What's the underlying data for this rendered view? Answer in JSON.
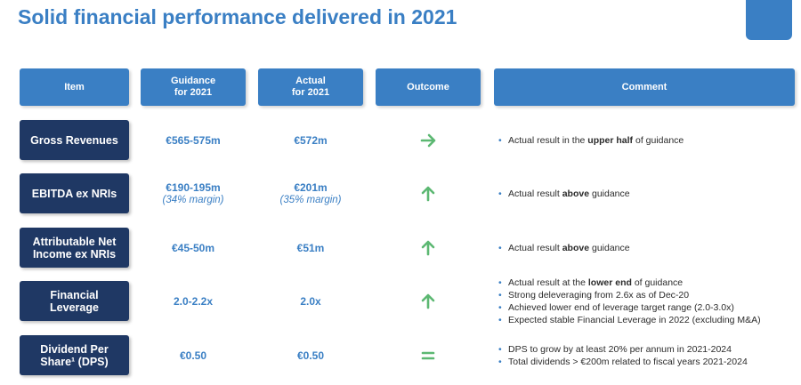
{
  "title": "Solid financial performance delivered in 2021",
  "colors": {
    "accent": "#3a7fc4",
    "navy": "#1f3864",
    "green": "#5cb872"
  },
  "headers": [
    {
      "line1": "Item",
      "line2": ""
    },
    {
      "line1": "Guidance",
      "line2": "for 2021"
    },
    {
      "line1": "Actual",
      "line2": "for 2021"
    },
    {
      "line1": "Outcome",
      "line2": ""
    },
    {
      "line1": "Comment",
      "line2": ""
    }
  ],
  "rows": [
    {
      "item_line1": "Gross Revenues",
      "item_line2": "",
      "guidance": "€565-575m",
      "guidance_sub": "",
      "actual": "€572m",
      "actual_sub": "",
      "outcome_icon": "arrow-right",
      "comments": [
        {
          "pre": "Actual result in the ",
          "bold": "upper half",
          "post": " of guidance"
        }
      ]
    },
    {
      "item_line1": "EBITDA ex NRIs",
      "item_line2": "",
      "guidance": "€190-195m",
      "guidance_sub": "(34% margin)",
      "actual": "€201m",
      "actual_sub": "(35% margin)",
      "outcome_icon": "arrow-up",
      "comments": [
        {
          "pre": "Actual result ",
          "bold": "above",
          "post": " guidance"
        }
      ]
    },
    {
      "item_line1": "Attributable Net",
      "item_line2": "Income ex NRIs",
      "guidance": "€45-50m",
      "guidance_sub": "",
      "actual": "€51m",
      "actual_sub": "",
      "outcome_icon": "arrow-up",
      "comments": [
        {
          "pre": "Actual result ",
          "bold": "above",
          "post": " guidance"
        }
      ]
    },
    {
      "item_line1": "Financial",
      "item_line2": "Leverage",
      "guidance": "2.0-2.2x",
      "guidance_sub": "",
      "actual": "2.0x",
      "actual_sub": "",
      "outcome_icon": "arrow-up",
      "comments": [
        {
          "pre": "Actual result at the ",
          "bold": "lower end",
          "post": " of guidance"
        },
        {
          "pre": "Strong deleveraging from 2.6x as of Dec-20",
          "bold": "",
          "post": ""
        },
        {
          "pre": "Achieved lower end of leverage target range (2.0-3.0x)",
          "bold": "",
          "post": ""
        },
        {
          "pre": "Expected stable Financial Leverage in 2022 (excluding M&A)",
          "bold": "",
          "post": ""
        }
      ]
    },
    {
      "item_line1": "Dividend Per",
      "item_line2": "Share¹ (DPS)",
      "guidance": "€0.50",
      "guidance_sub": "",
      "actual": "€0.50",
      "actual_sub": "",
      "outcome_icon": "equals",
      "comments": [
        {
          "pre": "DPS to grow by at least 20% per annum in 2021-2024",
          "bold": "",
          "post": ""
        },
        {
          "pre": "Total dividends > €200m related to fiscal years 2021-2024",
          "bold": "",
          "post": ""
        }
      ]
    }
  ]
}
